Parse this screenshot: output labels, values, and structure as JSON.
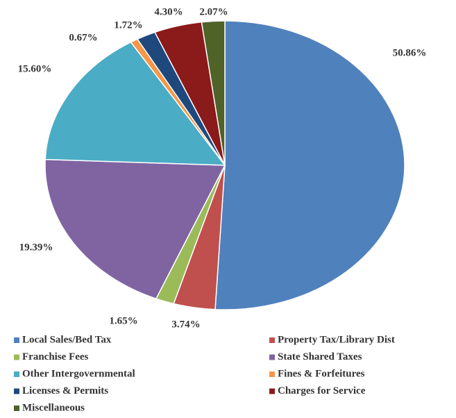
{
  "chart_data": {
    "type": "pie",
    "categories": [
      "Local Sales/Bed Tax",
      "Property Tax/Library Dist",
      "Franchise Fees",
      "State Shared Taxes",
      "Other Intergovernmental",
      "Fines & Forfeitures",
      "Licenses & Permits",
      "Charges for Service",
      "Miscellaneous"
    ],
    "values": [
      50.86,
      3.74,
      1.65,
      19.39,
      15.6,
      0.67,
      1.72,
      4.3,
      2.07
    ],
    "value_labels": [
      "50.86%",
      "3.74%",
      "1.65%",
      "19.39%",
      "15.60%",
      "0.67%",
      "1.72%",
      "4.30%",
      "2.07%"
    ],
    "colors": [
      "#4f81bd",
      "#c0504d",
      "#9bbb59",
      "#8064a2",
      "#4bacc6",
      "#f79646",
      "#1f497d",
      "#8b1a1a",
      "#4f6228"
    ],
    "legend": "bottom"
  }
}
